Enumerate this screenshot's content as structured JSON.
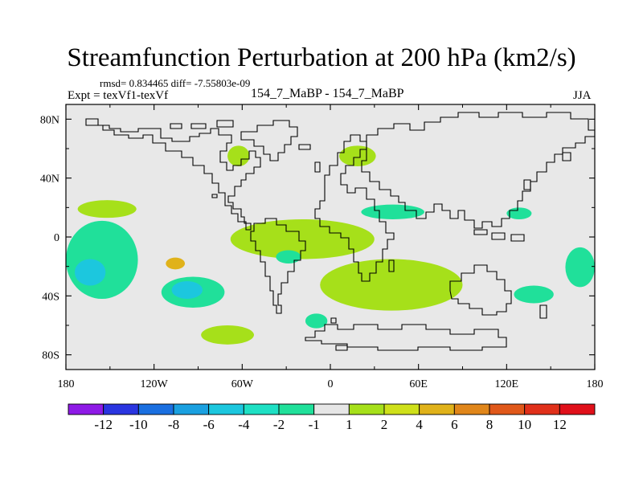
{
  "chart_data": {
    "type": "contour-map",
    "title": "Streamfunction Perturbation at 200 hPa (km2/s)",
    "stats_text": "rmsd= 0.834465 diff= -7.55803e-09",
    "left_string": "Expt = texVf1-texVf",
    "center_string": "154_7_MaBP - 154_7_MaBP",
    "right_string": "JJA",
    "x_axis": {
      "range": [
        -180,
        180
      ],
      "ticks": [
        -180,
        -120,
        -60,
        0,
        60,
        120,
        180
      ],
      "tick_labels": [
        "180",
        "120W",
        "60W",
        "0",
        "60E",
        "120E",
        "180"
      ]
    },
    "y_axis": {
      "range": [
        -90,
        90
      ],
      "ticks": [
        80,
        40,
        0,
        -40,
        -80
      ],
      "tick_labels": [
        "80N",
        "40N",
        "0",
        "40S",
        "80S"
      ]
    },
    "colorbar": {
      "labels": [
        "-12",
        "-10",
        "-8",
        "-6",
        "-4",
        "-2",
        "-1",
        "1",
        "2",
        "4",
        "6",
        "8",
        "10",
        "12"
      ],
      "colors": [
        "#8e1ae6",
        "#2a35e0",
        "#1a6fe0",
        "#1aa0e0",
        "#1cc7de",
        "#1ee0c4",
        "#20e09a",
        "#e6e6e6",
        "#a6e01a",
        "#cfe01a",
        "#e0b21a",
        "#e0861a",
        "#e0581a",
        "#e0301a",
        "#e0101a"
      ]
    },
    "anomaly_regions": [
      {
        "level": "1 to 2",
        "lon": [
          -70,
          -55
        ],
        "lat": [
          48,
          62
        ]
      },
      {
        "level": "1 to 2",
        "lon": [
          6,
          31
        ],
        "lat": [
          48,
          62
        ]
      },
      {
        "level": "1 to 2",
        "lon": [
          -68,
          30
        ],
        "lat": [
          -15,
          12
        ]
      },
      {
        "level": "1 to 2",
        "lon": [
          -7,
          90
        ],
        "lat": [
          -50,
          -15
        ]
      },
      {
        "level": "1 to 2",
        "lon": [
          -88,
          -52
        ],
        "lat": [
          -73,
          -60
        ]
      },
      {
        "level": "1 to 2",
        "lon": [
          -172,
          -132
        ],
        "lat": [
          13,
          25
        ]
      },
      {
        "level": "2 to 4",
        "lon": [
          -112,
          -99
        ],
        "lat": [
          -22,
          -14
        ]
      },
      {
        "level": "-2 to -1",
        "lon": [
          -180,
          -131
        ],
        "lat": [
          -42,
          11
        ]
      },
      {
        "level": "-2 to -1",
        "lon": [
          -115,
          -72
        ],
        "lat": [
          -48,
          -27
        ]
      },
      {
        "level": "-2 to -1",
        "lon": [
          21,
          64
        ],
        "lat": [
          12,
          22
        ]
      },
      {
        "level": "-2 to -1",
        "lon": [
          120,
          137
        ],
        "lat": [
          12,
          20
        ]
      },
      {
        "level": "-2 to -1",
        "lon": [
          125,
          152
        ],
        "lat": [
          -45,
          -33
        ]
      },
      {
        "level": "-2 to -1",
        "lon": [
          -37,
          -20
        ],
        "lat": [
          -18,
          -9
        ]
      },
      {
        "level": "-2 to -1",
        "lon": [
          -17,
          -2
        ],
        "lat": [
          -62,
          -52
        ]
      },
      {
        "level": "-2 to -1",
        "lon": [
          160,
          180
        ],
        "lat": [
          -34,
          -7
        ]
      },
      {
        "level": "-4 to -2",
        "lon": [
          -174,
          -153
        ],
        "lat": [
          -33,
          -15
        ]
      },
      {
        "level": "-4 to -2",
        "lon": [
          -108,
          -87
        ],
        "lat": [
          -42,
          -30
        ]
      }
    ]
  }
}
